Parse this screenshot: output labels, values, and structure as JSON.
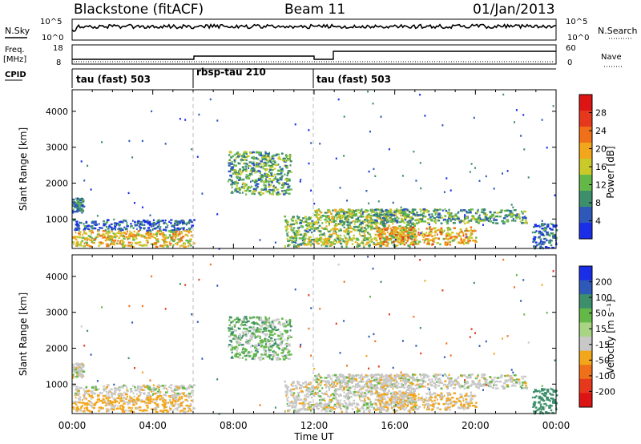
{
  "header": {
    "station": "Blackstone (fitACF)",
    "beam": "Beam 11",
    "date": "01/Jan/2013"
  },
  "aux": {
    "nsky_label": "N.Sky",
    "nsky_ticks": [
      "10^5",
      "10^0"
    ],
    "nsearch_label": "N.Search",
    "nsearch_ticks": [
      "10^5",
      "10^0"
    ],
    "freq_label_1": "Freq.",
    "freq_label_2": "[MHz]",
    "freq_ticks": [
      "18",
      "8"
    ],
    "nave_label": "Nave",
    "nave_ticks": [
      "60",
      "0"
    ],
    "cpid_label": "CPID"
  },
  "cpid": [
    {
      "label": "tau (fast) 503",
      "start_hour": 0
    },
    {
      "label": "rbsp-tau 210",
      "start_hour": 6
    },
    {
      "label": "tau (fast) 503",
      "start_hour": 12
    }
  ],
  "time_axis": {
    "label": "Time UT",
    "ticks": [
      "00:00",
      "04:00",
      "08:00",
      "12:00",
      "16:00",
      "20:00",
      "00:00"
    ],
    "range_hours": [
      0,
      24
    ]
  },
  "range_axis": {
    "label": "Slant Range [km]",
    "ticks": [
      "1000",
      "2000",
      "3000",
      "4000"
    ],
    "range_km": [
      180,
      4600
    ]
  },
  "power_scale": {
    "title": "Power [dB]",
    "ticks": [
      "4",
      "8",
      "12",
      "16",
      "20",
      "24",
      "28"
    ],
    "colors": [
      "#1a2ee8",
      "#2e59b8",
      "#3d8f6b",
      "#63b848",
      "#c9c92a",
      "#f2a61c",
      "#ef7018",
      "#e5381c",
      "#dc1414"
    ]
  },
  "velocity_scale": {
    "title": "Velocity [m s⁻¹]",
    "ticks": [
      "200",
      "100",
      "50",
      "15",
      "-15",
      "-50",
      "-100",
      "-200"
    ],
    "colors": [
      "#1a2ee8",
      "#2e59b8",
      "#3d8f6b",
      "#63b848",
      "#a9d483",
      "#c8c8c8",
      "#f2a61c",
      "#ef7018",
      "#e5381c",
      "#dc1414"
    ]
  },
  "chart_data": {
    "type": "heatmap",
    "panels": [
      "power",
      "velocity"
    ],
    "x_range_hours": [
      0,
      24
    ],
    "y_range_km": [
      180,
      4600
    ],
    "echo_regions": [
      {
        "t0": 0.0,
        "t1": 0.5,
        "r0": 1200,
        "r1": 1600,
        "power_dB": 10,
        "velocity": 0
      },
      {
        "t0": 0.0,
        "t1": 6.0,
        "r0": 700,
        "r1": 1000,
        "power_dB": 8,
        "velocity": 0
      },
      {
        "t0": 0.0,
        "t1": 6.0,
        "r0": 250,
        "r1": 700,
        "power_dB": 22,
        "velocity": -20
      },
      {
        "t0": 7.7,
        "t1": 10.8,
        "r0": 1700,
        "r1": 2900,
        "power_dB": 14,
        "velocity": 20
      },
      {
        "t0": 10.5,
        "t1": 12.0,
        "r0": 250,
        "r1": 1100,
        "power_dB": 16,
        "velocity": 0
      },
      {
        "t0": 12.0,
        "t1": 17.0,
        "r0": 250,
        "r1": 1300,
        "power_dB": 18,
        "velocity": 0
      },
      {
        "t0": 13.2,
        "t1": 22.5,
        "r0": 900,
        "r1": 1300,
        "power_dB": 14,
        "velocity": 0
      },
      {
        "t0": 15.0,
        "t1": 20.0,
        "r0": 300,
        "r1": 800,
        "power_dB": 24,
        "velocity": -15
      },
      {
        "t0": 22.8,
        "t1": 24.0,
        "r0": 200,
        "r1": 900,
        "power_dB": 8,
        "velocity": 50
      }
    ]
  }
}
